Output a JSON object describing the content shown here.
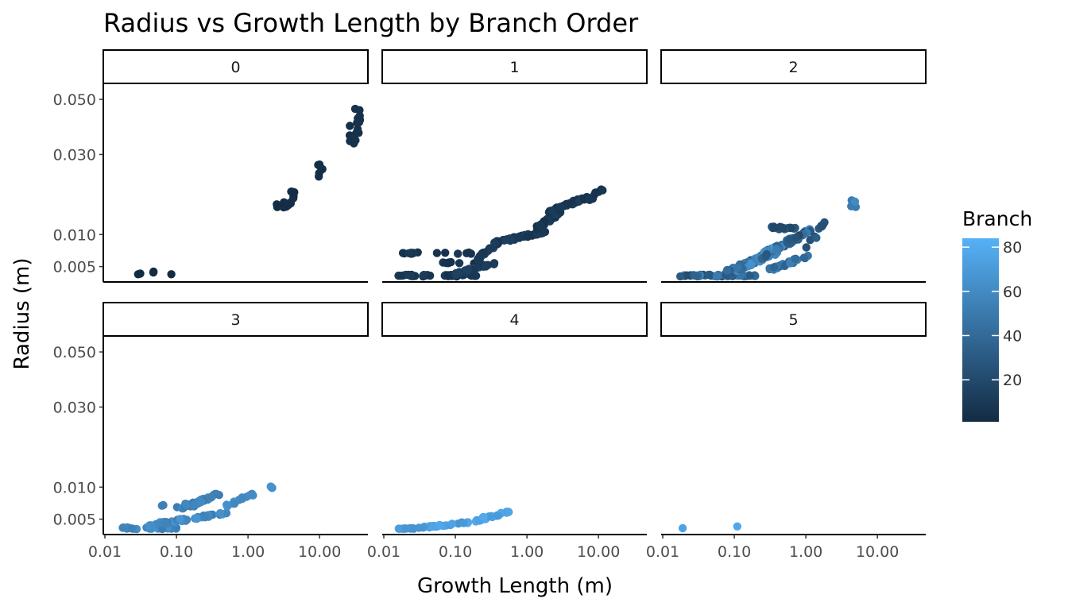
{
  "chart_data": {
    "type": "scatter",
    "title": "Radius vs Growth Length by Branch Order",
    "xlabel": "Growth Length (m)",
    "ylabel": "Radius (m)",
    "x_scale": "log10",
    "y_scale": "sqrt",
    "xlim": [
      0.01,
      45
    ],
    "ylim": [
      0.0039,
      0.054
    ],
    "x_ticks": [
      {
        "value": 0.01,
        "label": "0.01"
      },
      {
        "value": 0.1,
        "label": "0.10"
      },
      {
        "value": 1,
        "label": "1.00"
      },
      {
        "value": 10,
        "label": "10.00"
      }
    ],
    "y_ticks": [
      {
        "value": 0.005,
        "label": "0.005"
      },
      {
        "value": 0.01,
        "label": "0.010"
      },
      {
        "value": 0.03,
        "label": "0.030"
      },
      {
        "value": 0.05,
        "label": "0.050"
      }
    ],
    "facet_by": "Branch Order",
    "grid": false,
    "color_legend": {
      "title": "Branch",
      "variable": "Branch",
      "range": [
        1,
        84
      ],
      "breaks": [
        20,
        40,
        60,
        80
      ],
      "low_color": "#132B43",
      "high_color": "#56B1F7",
      "placement": "right"
    },
    "facets": [
      {
        "label": "0",
        "clusters": [
          {
            "x": [
              0.022,
              0.094
            ],
            "y": [
              0.004,
              0.0044
            ],
            "n": 5,
            "c": [
              1,
              2
            ]
          },
          {
            "x": [
              2.4,
              4.0
            ],
            "y": [
              0.0155,
              0.0168
            ],
            "n": 14,
            "c": [
              2,
              3
            ]
          },
          {
            "x": [
              4.0,
              4.8
            ],
            "y": [
              0.017,
              0.021
            ],
            "n": 6,
            "c": [
              3,
              4
            ]
          },
          {
            "x": [
              9.5,
              11
            ],
            "y": [
              0.023,
              0.027
            ],
            "n": 6,
            "c": [
              3,
              4
            ]
          },
          {
            "x": [
              26,
              38
            ],
            "y": [
              0.033,
              0.047
            ],
            "n": 18,
            "c": [
              4,
              6
            ]
          }
        ]
      },
      {
        "label": "1",
        "clusters": [
          {
            "x": [
              0.016,
              0.2
            ],
            "y": [
              0.0038,
              0.004
            ],
            "n": 40,
            "c": [
              4,
              12
            ]
          },
          {
            "x": [
              0.018,
              0.21
            ],
            "y": [
              0.0068,
              0.007
            ],
            "n": 14,
            "c": [
              4,
              10
            ]
          },
          {
            "x": [
              0.05,
              0.2
            ],
            "y": [
              0.0054,
              0.0056
            ],
            "n": 8,
            "c": [
              5,
              12
            ]
          },
          {
            "x": [
              0.1,
              0.35
            ],
            "y": [
              0.004,
              0.0055
            ],
            "n": 35,
            "c": [
              8,
              16
            ],
            "trend": true
          },
          {
            "x": [
              0.2,
              0.4
            ],
            "y": [
              0.006,
              0.0085
            ],
            "n": 20,
            "c": [
              8,
              16
            ],
            "trend": true
          },
          {
            "x": [
              0.35,
              1.8
            ],
            "y": [
              0.0085,
              0.0105
            ],
            "n": 60,
            "c": [
              6,
              14
            ],
            "trend": true
          },
          {
            "x": [
              1.3,
              3.0
            ],
            "y": [
              0.011,
              0.0145
            ],
            "n": 25,
            "c": [
              5,
              12
            ],
            "trend": true
          },
          {
            "x": [
              2.0,
              7.0
            ],
            "y": [
              0.0145,
              0.018
            ],
            "n": 40,
            "c": [
              5,
              12
            ],
            "trend": true
          },
          {
            "x": [
              7.0,
              13
            ],
            "y": [
              0.017,
              0.021
            ],
            "n": 12,
            "c": [
              5,
              9
            ],
            "trend": true
          }
        ]
      },
      {
        "label": "2",
        "clusters": [
          {
            "x": [
              0.014,
              0.2
            ],
            "y": [
              0.0038,
              0.004
            ],
            "n": 50,
            "c": [
              22,
              60
            ]
          },
          {
            "x": [
              0.07,
              0.4
            ],
            "y": [
              0.004,
              0.007
            ],
            "n": 70,
            "c": [
              25,
              65
            ],
            "trend": true
          },
          {
            "x": [
              0.2,
              0.8
            ],
            "y": [
              0.006,
              0.0095
            ],
            "n": 60,
            "c": [
              22,
              68
            ],
            "trend": true
          },
          {
            "x": [
              0.5,
              1.2
            ],
            "y": [
              0.0085,
              0.011
            ],
            "n": 25,
            "c": [
              20,
              55
            ],
            "trend": true
          },
          {
            "x": [
              0.25,
              0.8
            ],
            "y": [
              0.011,
              0.0115
            ],
            "n": 15,
            "c": [
              18,
              30
            ]
          },
          {
            "x": [
              0.3,
              1.1
            ],
            "y": [
              0.0045,
              0.0065
            ],
            "n": 35,
            "c": [
              35,
              55
            ],
            "trend": true
          },
          {
            "x": [
              1.0,
              2.0
            ],
            "y": [
              0.0075,
              0.0125
            ],
            "n": 10,
            "c": [
              22,
              35
            ],
            "trend": true
          },
          {
            "x": [
              4.2,
              5.0
            ],
            "y": [
              0.0155,
              0.0175
            ],
            "n": 6,
            "c": [
              50,
              60
            ]
          }
        ]
      },
      {
        "label": "3",
        "clusters": [
          {
            "x": [
              0.017,
              0.1
            ],
            "y": [
              0.0038,
              0.004
            ],
            "n": 22,
            "c": [
              50,
              65
            ]
          },
          {
            "x": [
              0.04,
              0.5
            ],
            "y": [
              0.0042,
              0.0058
            ],
            "n": 45,
            "c": [
              50,
              68
            ],
            "trend": true
          },
          {
            "x": [
              0.06,
              0.2
            ],
            "y": [
              0.0065,
              0.0072
            ],
            "n": 6,
            "c": [
              50,
              58
            ]
          },
          {
            "x": [
              0.12,
              0.4
            ],
            "y": [
              0.0065,
              0.0088
            ],
            "n": 30,
            "c": [
              50,
              62
            ],
            "trend": true
          },
          {
            "x": [
              0.5,
              1.2
            ],
            "y": [
              0.0068,
              0.0088
            ],
            "n": 15,
            "c": [
              55,
              65
            ],
            "trend": true
          },
          {
            "x": [
              2.0,
              2.3
            ],
            "y": [
              0.0098,
              0.0101
            ],
            "n": 4,
            "c": [
              60,
              66
            ]
          }
        ]
      },
      {
        "label": "4",
        "clusters": [
          {
            "x": [
              0.016,
              0.03
            ],
            "y": [
              0.0038,
              0.0039
            ],
            "n": 12,
            "c": [
              65,
              75
            ]
          },
          {
            "x": [
              0.03,
              0.15
            ],
            "y": [
              0.0039,
              0.0046
            ],
            "n": 25,
            "c": [
              66,
              78
            ],
            "trend": true
          },
          {
            "x": [
              0.15,
              0.6
            ],
            "y": [
              0.0046,
              0.006
            ],
            "n": 25,
            "c": [
              68,
              80
            ],
            "trend": true
          }
        ]
      },
      {
        "label": "5",
        "points": [
          {
            "x": 0.019,
            "y": 0.0039,
            "c": 75
          },
          {
            "x": 0.11,
            "y": 0.0041,
            "c": 78
          }
        ]
      }
    ]
  }
}
